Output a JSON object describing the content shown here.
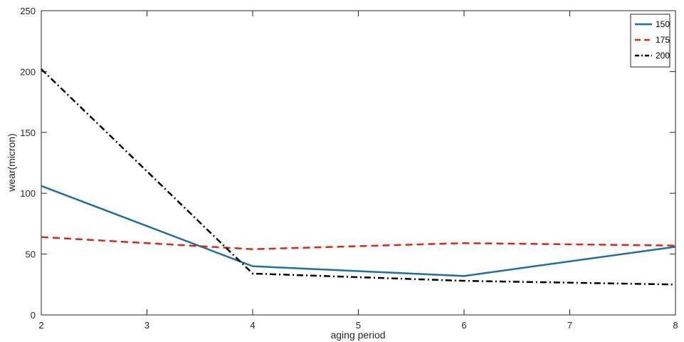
{
  "chart_data": {
    "type": "line",
    "title": "",
    "xlabel": "aging period",
    "ylabel": "wear(micron)",
    "xlim": [
      2,
      8
    ],
    "ylim": [
      0,
      250
    ],
    "xticks": [
      2,
      3,
      4,
      5,
      6,
      7,
      8
    ],
    "yticks": [
      0,
      50,
      100,
      150,
      200,
      250
    ],
    "x": [
      2,
      4,
      6,
      8
    ],
    "grid": false,
    "legend_position": "top-right",
    "series": [
      {
        "name": "150",
        "values": [
          106,
          40,
          32,
          56
        ],
        "color": "#1f6fa6",
        "style": "solid"
      },
      {
        "name": "175",
        "values": [
          64,
          54,
          59,
          57
        ],
        "color": "#d42a1c",
        "style": "dashed"
      },
      {
        "name": "200",
        "values": [
          202,
          34,
          28,
          25
        ],
        "color": "#000000",
        "style": "dashdot"
      }
    ]
  }
}
